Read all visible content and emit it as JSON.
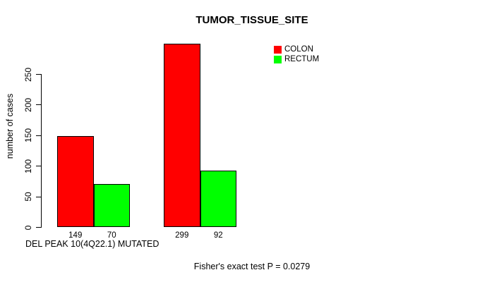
{
  "chart_data": {
    "type": "bar",
    "title": "TUMOR_TISSUE_SITE",
    "ylabel": "number of cases",
    "xlabel": "DEL PEAK 10(4Q22.1) MUTATED",
    "annotation": "Fisher's exact test P = 0.0279",
    "categories": [
      "",
      ""
    ],
    "series": [
      {
        "name": "COLON",
        "color": "#ff0000",
        "values": [
          149,
          299
        ]
      },
      {
        "name": "RECTUM",
        "color": "#00ff00",
        "values": [
          70,
          92
        ]
      }
    ],
    "bar_value_labels": [
      "149",
      "70",
      "299",
      "92"
    ],
    "yticks": [
      0,
      50,
      100,
      150,
      200,
      250
    ],
    "ylim": [
      0,
      300
    ],
    "grid": false,
    "legend_position": "top-right",
    "bar_border_color": "#000000",
    "background_color": "#ffffff",
    "text_color": "#000000"
  }
}
